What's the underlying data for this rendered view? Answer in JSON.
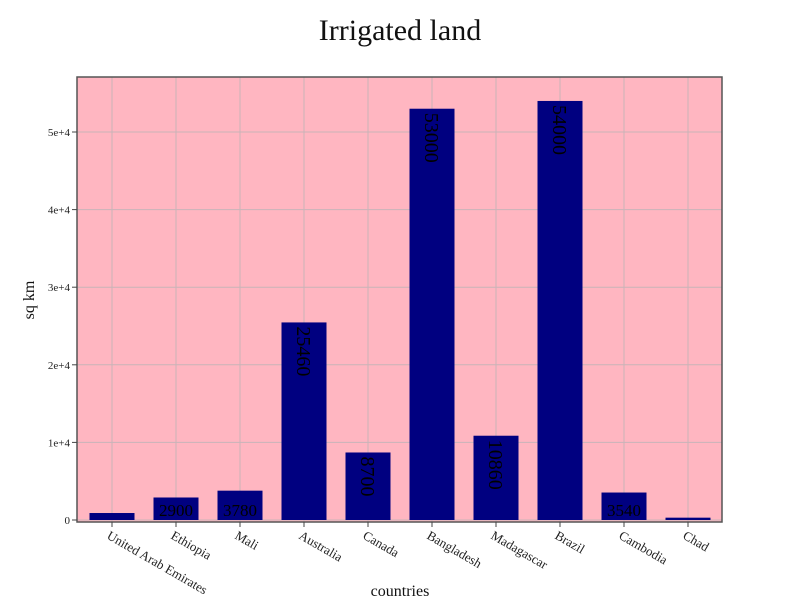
{
  "chart_data": {
    "type": "bar",
    "title": "Irrigated land",
    "xlabel": "countries",
    "ylabel": "sq km",
    "categories": [
      "United Arab Emirates",
      "Ethiopia",
      "Mali",
      "Australia",
      "Canada",
      "Bangladesh",
      "Madagascar",
      "Brazil",
      "Cambodia",
      "Chad"
    ],
    "values": [
      900,
      2900,
      3780,
      25460,
      8700,
      53000,
      10860,
      54000,
      3540,
      300
    ],
    "data_labels": [
      "",
      "2900",
      "3780",
      "25460",
      "8700",
      "53000",
      "10860",
      "54000",
      "3540",
      ""
    ],
    "ylim": [
      0,
      57000
    ],
    "yticks": [
      0,
      10000,
      20000,
      30000,
      40000,
      50000
    ],
    "ytick_labels": [
      "0",
      "1e+4",
      "2e+4",
      "3e+4",
      "4e+4",
      "5e+4"
    ],
    "grid": true,
    "colors": {
      "bar": "#000080",
      "plot_background": "#ffb6c1",
      "label_text": "#000000"
    }
  }
}
